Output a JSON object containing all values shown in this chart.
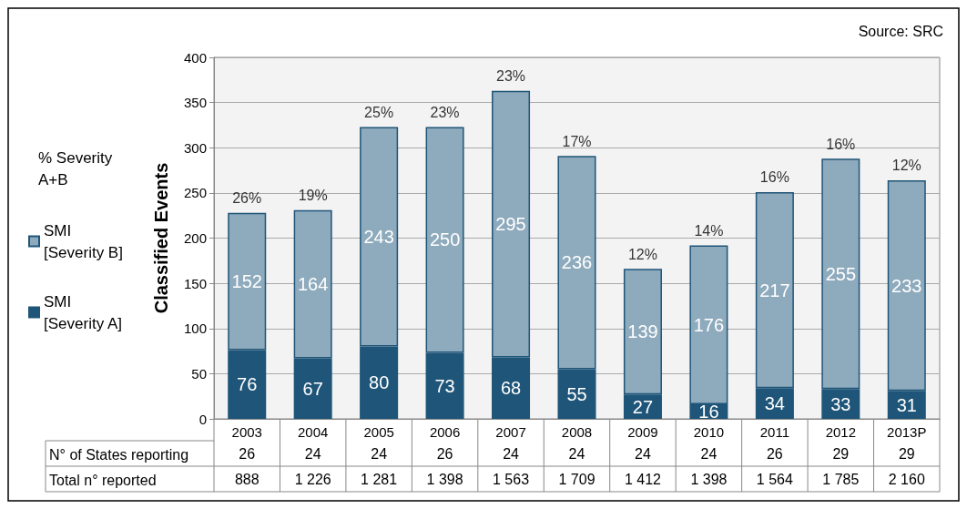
{
  "chart_data": {
    "type": "bar",
    "stacked": true,
    "ylabel": "Classified Events",
    "legend_title": "% Severity A+B",
    "legend": "left",
    "categories": [
      "2003",
      "2004",
      "2005",
      "2006",
      "2007",
      "2008",
      "2009",
      "2010",
      "2011",
      "2012",
      "2013P"
    ],
    "series": [
      {
        "name": "SMI [Severity A]",
        "color": "#1f5578",
        "values": [
          76,
          67,
          80,
          73,
          68,
          55,
          27,
          16,
          34,
          33,
          31
        ]
      },
      {
        "name": "SMI [Severity B]",
        "color": "#8eaabd",
        "values": [
          152,
          164,
          243,
          250,
          295,
          236,
          139,
          176,
          217,
          255,
          233
        ]
      }
    ],
    "data_labels": true,
    "ylim": [
      0,
      400
    ],
    "yticks": [
      0,
      50,
      100,
      150,
      200,
      250,
      300,
      350,
      400
    ],
    "grid": "y",
    "annotations": [
      "Source: SRC",
      {
        "text": "26%",
        "x": "2003",
        "y": 228
      },
      {
        "text": "19%",
        "x": "2004",
        "y": 231
      },
      {
        "text": "25%",
        "x": "2005",
        "y": 323
      },
      {
        "text": "23%",
        "x": "2006",
        "y": 323
      },
      {
        "text": "23%",
        "x": "2007",
        "y": 363
      },
      {
        "text": "17%",
        "x": "2008",
        "y": 291
      },
      {
        "text": "12%",
        "x": "2009",
        "y": 166
      },
      {
        "text": "14%",
        "x": "2010",
        "y": 192
      },
      {
        "text": "16%",
        "x": "2011",
        "y": 251
      },
      {
        "text": "16%",
        "x": "2012",
        "y": 288
      },
      {
        "text": "12%",
        "x": "2013P",
        "y": 264
      },
      "N° of States reporting",
      "26",
      "24",
      "24",
      "26",
      "24",
      "24",
      "24",
      "24",
      "26",
      "29",
      "29",
      "Total n° reported",
      "888",
      "1 226",
      "1 281",
      "1 398",
      "1 563",
      "1 709",
      "1 412",
      "1 398",
      "1 564",
      "1 785",
      "2 160"
    ]
  }
}
